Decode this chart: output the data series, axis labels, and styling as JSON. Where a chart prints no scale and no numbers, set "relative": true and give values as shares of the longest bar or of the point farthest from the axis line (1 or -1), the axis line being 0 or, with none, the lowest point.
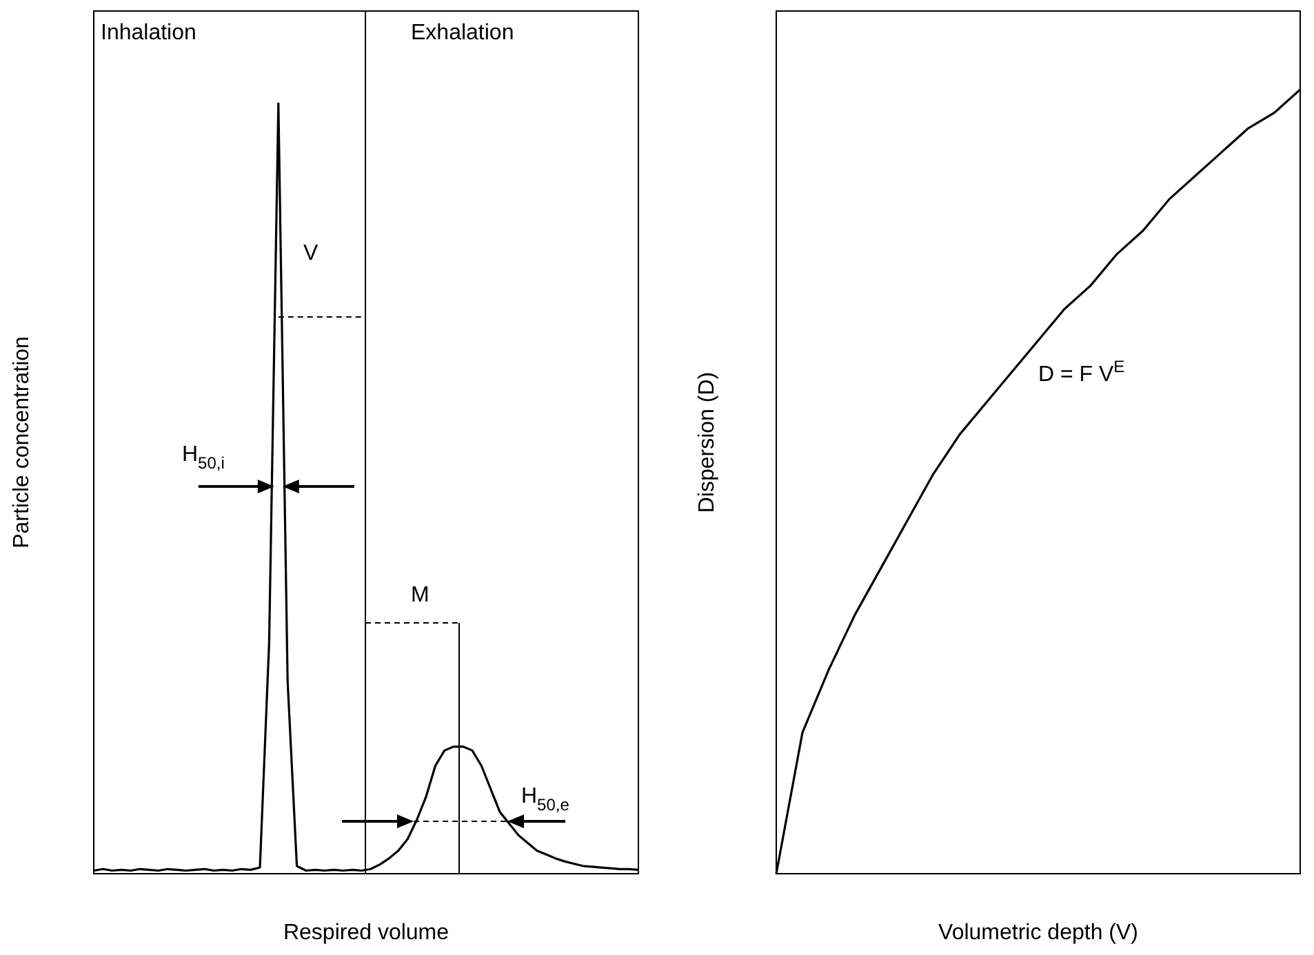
{
  "chart_data": [
    {
      "type": "line",
      "relative": true,
      "xlabel": "Respired volume",
      "ylabel": "Particle concentration",
      "categories": [
        null,
        null,
        null,
        null,
        null,
        null,
        null,
        null,
        null,
        null,
        null,
        null,
        null,
        null,
        null,
        null,
        null,
        null,
        null,
        null,
        null,
        null,
        null,
        null,
        null,
        null,
        null,
        null,
        null,
        null,
        null,
        null,
        null,
        null,
        null,
        null,
        null,
        null,
        null,
        null,
        null,
        null,
        null,
        null,
        null,
        null,
        null,
        null,
        null,
        null,
        null,
        null,
        null,
        null,
        null,
        null,
        null,
        null,
        null,
        null
      ],
      "series": [
        {
          "color": "#000000",
          "values": [
            0.004,
            0.006,
            0.004,
            0.005,
            0.004,
            0.006,
            0.005,
            0.004,
            0.006,
            0.005,
            0.004,
            0.005,
            0.006,
            0.004,
            0.005,
            0.004,
            0.006,
            0.005,
            0.008,
            0.3,
            1,
            0.25,
            0.01,
            0.004,
            0.005,
            0.004,
            0.005,
            0.004,
            0.005,
            0.004,
            0.006,
            0.012,
            0.02,
            0.03,
            0.045,
            0.07,
            0.1,
            0.14,
            0.16,
            0.165,
            0.165,
            0.16,
            0.14,
            0.11,
            0.08,
            0.065,
            0.05,
            0.04,
            0.03,
            0.025,
            0.02,
            0.016,
            0.013,
            0.01,
            0.009,
            0.008,
            0.007,
            0.006,
            0.006,
            0.005
          ]
        }
      ],
      "annotations": [
        "Inhalation",
        "Exhalation",
        "V",
        "H$_{50,i}$",
        "M",
        "H$_{50,e}$"
      ]
    },
    {
      "type": "line",
      "relative": true,
      "xlabel": "Volumetric depth (V)",
      "ylabel": "Dispersion (D)",
      "categories": [
        null,
        null,
        null,
        null,
        null,
        null,
        null,
        null,
        null,
        null,
        null,
        null,
        null,
        null,
        null,
        null,
        null,
        null,
        null,
        null,
        null
      ],
      "series": [
        {
          "color": "#000000",
          "values": [
            0,
            0.18,
            0.26,
            0.33,
            0.39,
            0.45,
            0.51,
            0.56,
            0.6,
            0.64,
            0.68,
            0.72,
            0.75,
            0.79,
            0.82,
            0.86,
            0.89,
            0.92,
            0.95,
            0.97,
            1
          ]
        }
      ],
      "annotations": [
        "D = F V$^{E}$"
      ]
    }
  ]
}
